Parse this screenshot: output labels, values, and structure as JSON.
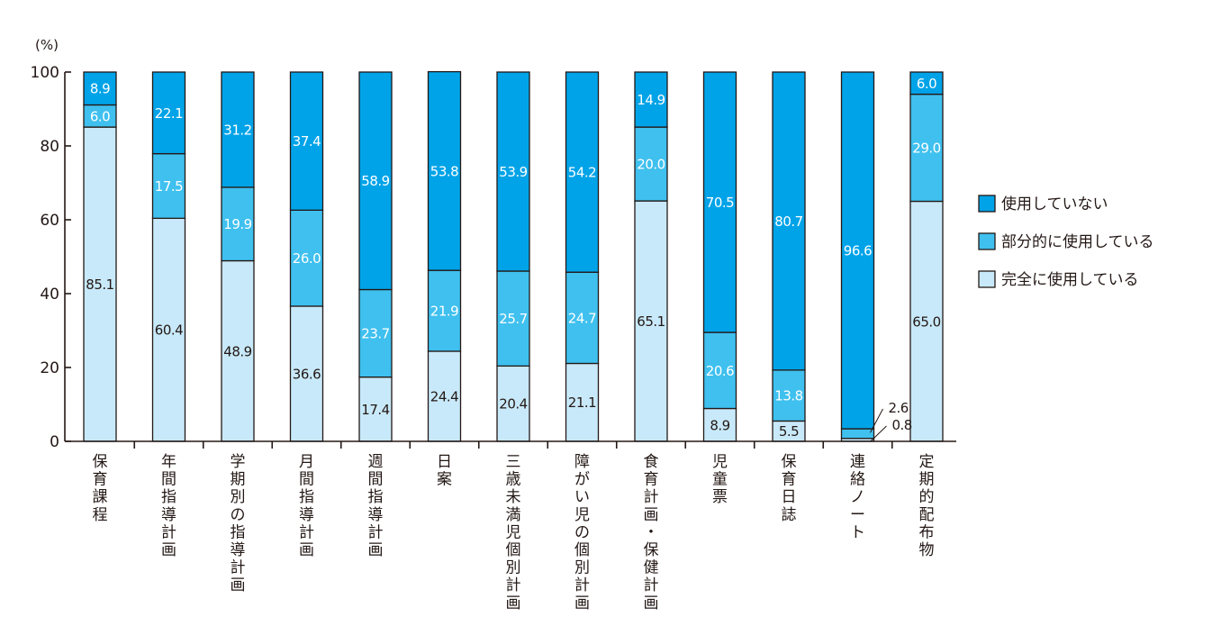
{
  "chart_data": {
    "type": "bar",
    "stacked": true,
    "categories": [
      "保育課程",
      "年間指導計画",
      "学期別の指導計画",
      "月間指導計画",
      "週間指導計画",
      "日案",
      "三歳未満児個別計画",
      "障がい児の個別計画",
      "食育計画・保健計画",
      "児童票",
      "保育日誌",
      "連絡ノート",
      "定期的配布物"
    ],
    "series": [
      {
        "name": "完全に使用している",
        "color": "#c8e9f9",
        "values": [
          85.1,
          60.4,
          48.9,
          36.6,
          17.4,
          24.4,
          20.4,
          21.1,
          65.1,
          8.9,
          5.5,
          0.8,
          65.0
        ]
      },
      {
        "name": "部分的に使用している",
        "color": "#3fc0ef",
        "values": [
          6.0,
          17.5,
          19.9,
          26.0,
          23.7,
          21.9,
          25.7,
          24.7,
          20.0,
          20.6,
          13.8,
          2.6,
          29.0
        ]
      },
      {
        "name": "使用していない",
        "color": "#00a3e8",
        "values": [
          8.9,
          22.1,
          31.2,
          37.4,
          58.9,
          53.8,
          53.9,
          54.2,
          14.9,
          70.5,
          80.7,
          96.6,
          6.0
        ]
      }
    ],
    "ylabel": "(%)",
    "ylim": [
      0,
      100
    ],
    "yticks": [
      0,
      20,
      40,
      60,
      80,
      100
    ],
    "grid": false,
    "legend_position": "right",
    "legend_order": [
      "使用していない",
      "部分的に使用している",
      "完全に使用している"
    ]
  }
}
